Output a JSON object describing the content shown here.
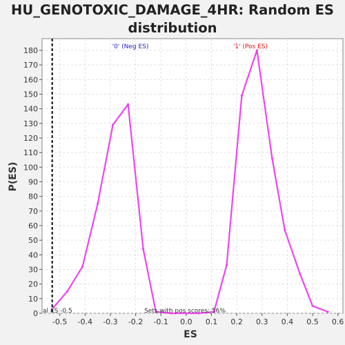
{
  "chart_data": {
    "type": "line",
    "title_line1": "HU_GENOTOXIC_DAMAGE_4HR: Random ES",
    "title_line2": "distribution",
    "xlabel": "ES",
    "ylabel": "P(ES)",
    "xlim": [
      -0.57,
      0.62
    ],
    "ylim": [
      0,
      188
    ],
    "xticks": [
      -0.5,
      -0.4,
      -0.3,
      -0.2,
      -0.1,
      0.0,
      0.1,
      0.2,
      0.3,
      0.4,
      0.5,
      0.6
    ],
    "xtick_labels": [
      "-0.5",
      "-0.4",
      "-0.3",
      "-0.2",
      "-0.1",
      "0.0",
      "0.1",
      "0.2",
      "0.3",
      "0.4",
      "0.5",
      "0.6"
    ],
    "yticks": [
      0,
      10,
      20,
      30,
      40,
      50,
      60,
      70,
      80,
      90,
      100,
      110,
      120,
      130,
      140,
      150,
      160,
      170,
      180
    ],
    "ytick_labels": [
      "0",
      "10",
      "20",
      "30",
      "40",
      "50",
      "60",
      "70",
      "80",
      "90",
      "100",
      "110",
      "120",
      "130",
      "140",
      "150",
      "160",
      "170",
      "180"
    ],
    "grid": true,
    "series": [
      {
        "color": "#ee44ee",
        "x": [
          -0.525,
          -0.47,
          -0.41,
          -0.35,
          -0.29,
          -0.23,
          -0.17,
          -0.12,
          -0.06,
          0.0,
          0.05,
          0.11,
          0.16,
          0.22,
          0.28,
          0.34,
          0.39,
          0.45,
          0.5,
          0.56
        ],
        "y": [
          4,
          15,
          32,
          75,
          129,
          143,
          44,
          1,
          0,
          0,
          0,
          1,
          33,
          149,
          180,
          106,
          57,
          27,
          5,
          1
        ]
      }
    ],
    "vline": {
      "x": -0.53,
      "color": "#000000",
      "style": "dashed"
    },
    "annotations": {
      "neg_label": "'0' (Neg ES)",
      "pos_label": "'1' (Pos ES)",
      "neg_color": "#1f1fbf",
      "pos_color": "#e01010",
      "actual_es": "al ES -0.5",
      "pos_scores": "Sets with pos scores: 56%"
    }
  }
}
